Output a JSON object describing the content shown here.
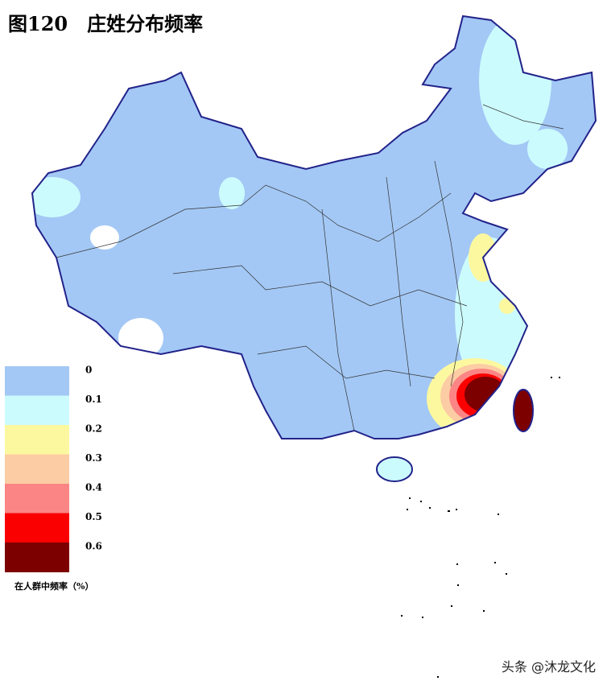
{
  "title": "图120　庄姓分布频率",
  "legend": {
    "ticks": [
      0,
      0.1,
      0.2,
      0.3,
      0.4,
      0.5,
      0.6
    ],
    "colors": [
      "#a3c8f5",
      "#ccfbfd",
      "#fcf8a0",
      "#fccca4",
      "#fb8585",
      "#fb0000",
      "#7d0000"
    ],
    "caption": "在人群中频率（%）"
  },
  "watermark": "头条 @沐龙文化"
}
